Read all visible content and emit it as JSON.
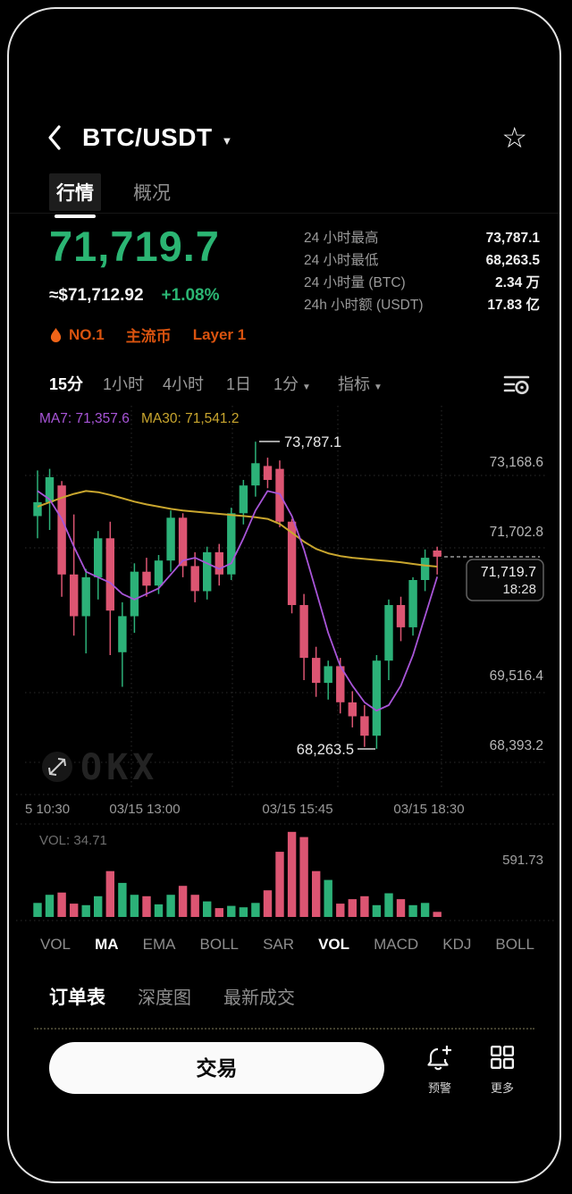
{
  "header": {
    "title": "BTC/USDT",
    "star_icon": "☆"
  },
  "tabs": [
    {
      "label": "行情",
      "active": true
    },
    {
      "label": "概况",
      "active": false
    }
  ],
  "price": {
    "last": "71,719.7",
    "approx_usd": "≈$71,712.92",
    "change_pct": "+1.08%"
  },
  "badges": {
    "rank": "NO.1",
    "tag_mainstream": "主流币",
    "tag_layer": "Layer 1"
  },
  "stats": [
    {
      "label": "24 小时最高",
      "value": "73,787.1"
    },
    {
      "label": "24 小时最低",
      "value": "68,263.5"
    },
    {
      "label": "24 小时量 (BTC)",
      "value": "2.34 万"
    },
    {
      "label": "24h 小时额 (USDT)",
      "value": "17.83 亿"
    }
  ],
  "timeframes": [
    {
      "label": "15分",
      "active": true
    },
    {
      "label": "1小时",
      "active": false
    },
    {
      "label": "4小时",
      "active": false
    },
    {
      "label": "1日",
      "active": false
    },
    {
      "label": "1分",
      "active": false,
      "dropdown": true
    },
    {
      "label": "指标",
      "active": false,
      "dropdown": true
    }
  ],
  "chart_data": {
    "type": "candlestick",
    "interval": "15分",
    "ma_labels": {
      "ma7": "MA7: 71,357.6",
      "ma30": "MA30: 71,541.2"
    },
    "y_axis_labels": [
      "73,168.6",
      "71,702.8",
      "69,516.4",
      "68,393.2"
    ],
    "x_axis_labels": [
      "5 10:30",
      "03/15 13:00",
      "03/15 15:45",
      "03/15 18:30"
    ],
    "annotations": {
      "high": "73,787.1",
      "low": "68,263.5",
      "last_price": "71,719.7",
      "last_time": "18:28"
    },
    "watermark": "OKX",
    "ylim": [
      68150,
      74450
    ],
    "candles": [
      [
        72450,
        73270,
        72050,
        72700
      ],
      [
        72700,
        73300,
        72200,
        73150
      ],
      [
        73000,
        73080,
        71000,
        71400
      ],
      [
        71400,
        72480,
        70300,
        70650
      ],
      [
        70650,
        71500,
        69980,
        71350
      ],
      [
        71350,
        72180,
        70950,
        72050
      ],
      [
        72050,
        72350,
        69950,
        70750
      ],
      [
        70000,
        70900,
        69380,
        70650
      ],
      [
        70650,
        71600,
        70350,
        71450
      ],
      [
        71450,
        71700,
        71000,
        71200
      ],
      [
        71200,
        71750,
        71050,
        71650
      ],
      [
        71650,
        72550,
        71450,
        72420
      ],
      [
        72420,
        72500,
        71350,
        71550
      ],
      [
        71550,
        71800,
        70900,
        71100
      ],
      [
        71100,
        71900,
        70950,
        71800
      ],
      [
        71800,
        71950,
        71200,
        71400
      ],
      [
        71400,
        72600,
        71300,
        72500
      ],
      [
        72500,
        73100,
        72300,
        73000
      ],
      [
        73000,
        73787.1,
        72800,
        73400
      ],
      [
        73350,
        73500,
        72950,
        73100
      ],
      [
        73300,
        73450,
        72250,
        72350
      ],
      [
        72350,
        72400,
        70700,
        70850
      ],
      [
        70850,
        71050,
        69500,
        69900
      ],
      [
        69900,
        70100,
        69200,
        69450
      ],
      [
        69450,
        69850,
        69150,
        69750
      ],
      [
        69750,
        69900,
        68900,
        69100
      ],
      [
        69100,
        69300,
        68650,
        68850
      ],
      [
        68850,
        69050,
        68300,
        68500
      ],
      [
        68500,
        69950,
        68263.5,
        69850
      ],
      [
        69850,
        70950,
        69500,
        70850
      ],
      [
        70850,
        71000,
        70200,
        70450
      ],
      [
        70450,
        71350,
        70300,
        71300
      ],
      [
        71300,
        71850,
        71100,
        71700
      ],
      [
        71830,
        71900,
        71400,
        71719.7
      ]
    ],
    "ma7": [
      72900,
      72750,
      72400,
      71900,
      71450,
      71350,
      71250,
      71050,
      70950,
      71050,
      71150,
      71400,
      71650,
      71700,
      71600,
      71500,
      71600,
      72050,
      72550,
      72900,
      72850,
      72450,
      71850,
      71100,
      70350,
      69750,
      69400,
      69100,
      68950,
      69050,
      69400,
      69950,
      70650,
      71357.6
    ],
    "ma30": [
      72620,
      72700,
      72780,
      72850,
      72900,
      72880,
      72830,
      72770,
      72710,
      72660,
      72620,
      72580,
      72550,
      72530,
      72510,
      72490,
      72470,
      72450,
      72430,
      72400,
      72310,
      72150,
      71990,
      71860,
      71780,
      71730,
      71700,
      71680,
      71660,
      71640,
      71620,
      71590,
      71560,
      71541.2
    ],
    "volumes": [
      95,
      150,
      165,
      90,
      80,
      140,
      310,
      230,
      150,
      140,
      85,
      150,
      210,
      150,
      105,
      60,
      75,
      65,
      95,
      180,
      440,
      575,
      540,
      310,
      250,
      90,
      120,
      140,
      80,
      160,
      120,
      80,
      95,
      34.71
    ],
    "volume_axis_max": 591.73,
    "volume_axis_max_label": "591.73",
    "vol_label": "VOL: 34.71",
    "colors": {
      "up": "#2CB178",
      "down": "#DC5572",
      "ma7": "#A855D8",
      "ma30": "#C9A62E"
    }
  },
  "indicators": [
    {
      "label": "VOL",
      "active": false
    },
    {
      "label": "MA",
      "active": true
    },
    {
      "label": "EMA",
      "active": false
    },
    {
      "label": "BOLL",
      "active": false
    },
    {
      "label": "SAR",
      "active": false
    },
    {
      "label": "VOL",
      "active": true
    },
    {
      "label": "MACD",
      "active": false
    },
    {
      "label": "KDJ",
      "active": false
    },
    {
      "label": "BOLL",
      "active": false
    }
  ],
  "bottom_tabs": [
    {
      "label": "订单表",
      "active": true
    },
    {
      "label": "深度图",
      "active": false
    },
    {
      "label": "最新成交",
      "active": false
    }
  ],
  "actions": {
    "trade": "交易",
    "alert": "预警",
    "more": "更多"
  }
}
